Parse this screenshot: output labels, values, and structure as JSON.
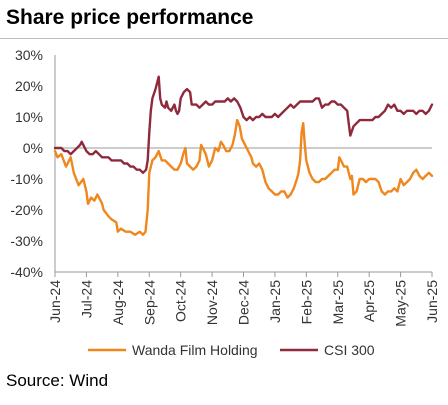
{
  "title": "Share price performance",
  "source": "Source: Wind",
  "chart_data": {
    "type": "line",
    "title": "Share price performance",
    "xlabel": "",
    "ylabel": "",
    "ylim": [
      -40,
      30
    ],
    "yticks": [
      "30%",
      "20%",
      "10%",
      "0%",
      "-10%",
      "-20%",
      "-30%",
      "-40%"
    ],
    "x_tick_labels": [
      "Jun-24",
      "Jul-24",
      "Aug-24",
      "Sep-24",
      "Oct-24",
      "Nov-24",
      "Dec-24",
      "Jan-25",
      "Feb-25",
      "Mar-25",
      "Apr-25",
      "May-25",
      "Jun-25"
    ],
    "legend_position": "bottom",
    "grid": false,
    "series": [
      {
        "name": "Wanda Film Holding",
        "color": "#f0861e",
        "points": [
          [
            0.0,
            -1
          ],
          [
            0.08,
            -3
          ],
          [
            0.2,
            -2
          ],
          [
            0.35,
            -6
          ],
          [
            0.5,
            -3
          ],
          [
            0.6,
            -8
          ],
          [
            0.75,
            -12
          ],
          [
            0.9,
            -10
          ],
          [
            1.0,
            -14
          ],
          [
            1.05,
            -18
          ],
          [
            1.15,
            -16
          ],
          [
            1.25,
            -17
          ],
          [
            1.35,
            -15
          ],
          [
            1.45,
            -17
          ],
          [
            1.5,
            -18
          ],
          [
            1.55,
            -20
          ],
          [
            1.7,
            -22
          ],
          [
            1.8,
            -23
          ],
          [
            1.95,
            -24
          ],
          [
            2.0,
            -27
          ],
          [
            2.1,
            -26
          ],
          [
            2.25,
            -27
          ],
          [
            2.4,
            -27
          ],
          [
            2.55,
            -28
          ],
          [
            2.7,
            -27
          ],
          [
            2.8,
            -28
          ],
          [
            2.88,
            -27
          ],
          [
            2.95,
            -20
          ],
          [
            3.0,
            -8
          ],
          [
            3.1,
            -4
          ],
          [
            3.2,
            -3
          ],
          [
            3.3,
            -1
          ],
          [
            3.4,
            -4
          ],
          [
            3.5,
            -4
          ],
          [
            3.6,
            -5
          ],
          [
            3.7,
            -6
          ],
          [
            3.8,
            -7
          ],
          [
            3.9,
            -7
          ],
          [
            4.0,
            -5
          ],
          [
            4.08,
            -2
          ],
          [
            4.15,
            0
          ],
          [
            4.2,
            -5
          ],
          [
            4.3,
            -6
          ],
          [
            4.4,
            -7
          ],
          [
            4.5,
            -6
          ],
          [
            4.6,
            -4
          ],
          [
            4.65,
            1
          ],
          [
            4.7,
            0
          ],
          [
            4.8,
            -2
          ],
          [
            4.9,
            -6
          ],
          [
            5.0,
            -4
          ],
          [
            5.1,
            0
          ],
          [
            5.2,
            -1
          ],
          [
            5.28,
            2
          ],
          [
            5.35,
            1
          ],
          [
            5.45,
            -1
          ],
          [
            5.55,
            -1
          ],
          [
            5.65,
            1
          ],
          [
            5.72,
            4
          ],
          [
            5.8,
            9
          ],
          [
            5.88,
            7
          ],
          [
            5.95,
            3
          ],
          [
            6.05,
            1
          ],
          [
            6.15,
            -1
          ],
          [
            6.25,
            -3
          ],
          [
            6.3,
            -5
          ],
          [
            6.4,
            -6
          ],
          [
            6.5,
            -5
          ],
          [
            6.6,
            -7
          ],
          [
            6.7,
            -11
          ],
          [
            6.8,
            -13
          ],
          [
            6.9,
            -14
          ],
          [
            7.0,
            -15
          ],
          [
            7.1,
            -15
          ],
          [
            7.2,
            -14
          ],
          [
            7.3,
            -14
          ],
          [
            7.4,
            -16
          ],
          [
            7.5,
            -15
          ],
          [
            7.6,
            -13
          ],
          [
            7.7,
            -10
          ],
          [
            7.75,
            -8
          ],
          [
            7.8,
            -4
          ],
          [
            7.85,
            5
          ],
          [
            7.9,
            8
          ],
          [
            7.95,
            1
          ],
          [
            8.0,
            -4
          ],
          [
            8.1,
            -8
          ],
          [
            8.2,
            -10
          ],
          [
            8.3,
            -11
          ],
          [
            8.4,
            -11
          ],
          [
            8.5,
            -10
          ],
          [
            8.6,
            -10
          ],
          [
            8.7,
            -9
          ],
          [
            8.8,
            -8
          ],
          [
            8.9,
            -7
          ],
          [
            9.0,
            -7
          ],
          [
            9.05,
            -3
          ],
          [
            9.15,
            -5
          ],
          [
            9.2,
            -6
          ],
          [
            9.3,
            -6
          ],
          [
            9.4,
            -10
          ],
          [
            9.45,
            -9
          ],
          [
            9.5,
            -15
          ],
          [
            9.6,
            -14
          ],
          [
            9.7,
            -10
          ],
          [
            9.8,
            -10
          ],
          [
            9.9,
            -11
          ],
          [
            10.0,
            -10
          ],
          [
            10.1,
            -10
          ],
          [
            10.2,
            -10
          ],
          [
            10.3,
            -11
          ],
          [
            10.4,
            -14
          ],
          [
            10.5,
            -15
          ],
          [
            10.6,
            -14
          ],
          [
            10.7,
            -14
          ],
          [
            10.8,
            -13
          ],
          [
            10.9,
            -14
          ],
          [
            11.0,
            -10
          ],
          [
            11.1,
            -12
          ],
          [
            11.2,
            -11
          ],
          [
            11.3,
            -10
          ],
          [
            11.4,
            -8
          ],
          [
            11.5,
            -7
          ],
          [
            11.6,
            -9
          ],
          [
            11.7,
            -10
          ],
          [
            11.8,
            -9
          ],
          [
            11.9,
            -8
          ],
          [
            12.0,
            -9
          ]
        ]
      },
      {
        "name": "CSI 300",
        "color": "#8e2a3c",
        "points": [
          [
            0.0,
            0
          ],
          [
            0.1,
            0
          ],
          [
            0.2,
            0
          ],
          [
            0.3,
            -1
          ],
          [
            0.4,
            -1
          ],
          [
            0.5,
            -2
          ],
          [
            0.6,
            -1
          ],
          [
            0.7,
            0
          ],
          [
            0.8,
            1
          ],
          [
            0.85,
            2
          ],
          [
            0.9,
            1
          ],
          [
            1.0,
            -1
          ],
          [
            1.1,
            -2
          ],
          [
            1.2,
            -2
          ],
          [
            1.3,
            -1
          ],
          [
            1.4,
            -2
          ],
          [
            1.5,
            -3
          ],
          [
            1.6,
            -3
          ],
          [
            1.7,
            -3
          ],
          [
            1.8,
            -4
          ],
          [
            1.9,
            -4
          ],
          [
            2.0,
            -4
          ],
          [
            2.1,
            -4
          ],
          [
            2.2,
            -5
          ],
          [
            2.3,
            -5
          ],
          [
            2.4,
            -6
          ],
          [
            2.5,
            -6
          ],
          [
            2.6,
            -7
          ],
          [
            2.7,
            -7
          ],
          [
            2.8,
            -8
          ],
          [
            2.9,
            -7
          ],
          [
            2.95,
            -4
          ],
          [
            3.0,
            5
          ],
          [
            3.05,
            12
          ],
          [
            3.1,
            16
          ],
          [
            3.2,
            19
          ],
          [
            3.25,
            21
          ],
          [
            3.3,
            23
          ],
          [
            3.35,
            16
          ],
          [
            3.4,
            14
          ],
          [
            3.5,
            13
          ],
          [
            3.55,
            15
          ],
          [
            3.6,
            13
          ],
          [
            3.7,
            12
          ],
          [
            3.8,
            14
          ],
          [
            3.85,
            12
          ],
          [
            3.9,
            11
          ],
          [
            3.95,
            12
          ],
          [
            4.0,
            16
          ],
          [
            4.1,
            18
          ],
          [
            4.2,
            19
          ],
          [
            4.3,
            18
          ],
          [
            4.35,
            14
          ],
          [
            4.5,
            14
          ],
          [
            4.6,
            13
          ],
          [
            4.7,
            14
          ],
          [
            4.8,
            15
          ],
          [
            4.9,
            14
          ],
          [
            5.0,
            14
          ],
          [
            5.1,
            15
          ],
          [
            5.2,
            15
          ],
          [
            5.3,
            15
          ],
          [
            5.4,
            15
          ],
          [
            5.5,
            16
          ],
          [
            5.6,
            15
          ],
          [
            5.7,
            16
          ],
          [
            5.8,
            15
          ],
          [
            5.9,
            13
          ],
          [
            6.0,
            10
          ],
          [
            6.1,
            9
          ],
          [
            6.2,
            10
          ],
          [
            6.3,
            9
          ],
          [
            6.4,
            10
          ],
          [
            6.5,
            10
          ],
          [
            6.6,
            11
          ],
          [
            6.7,
            10
          ],
          [
            6.8,
            10
          ],
          [
            6.9,
            10
          ],
          [
            7.0,
            11
          ],
          [
            7.1,
            10
          ],
          [
            7.2,
            11
          ],
          [
            7.3,
            12
          ],
          [
            7.4,
            13
          ],
          [
            7.5,
            14
          ],
          [
            7.6,
            13
          ],
          [
            7.7,
            14
          ],
          [
            7.8,
            15
          ],
          [
            7.9,
            15
          ],
          [
            8.0,
            15
          ],
          [
            8.1,
            15
          ],
          [
            8.2,
            15
          ],
          [
            8.3,
            16
          ],
          [
            8.4,
            16
          ],
          [
            8.5,
            13
          ],
          [
            8.6,
            14
          ],
          [
            8.7,
            14
          ],
          [
            8.8,
            15
          ],
          [
            8.9,
            15
          ],
          [
            9.0,
            14
          ],
          [
            9.1,
            14
          ],
          [
            9.2,
            13
          ],
          [
            9.3,
            12
          ],
          [
            9.35,
            8
          ],
          [
            9.4,
            4
          ],
          [
            9.5,
            7
          ],
          [
            9.6,
            8
          ],
          [
            9.7,
            9
          ],
          [
            9.8,
            9
          ],
          [
            9.9,
            9
          ],
          [
            10.0,
            9
          ],
          [
            10.1,
            9
          ],
          [
            10.2,
            10
          ],
          [
            10.3,
            10
          ],
          [
            10.4,
            11
          ],
          [
            10.5,
            12
          ],
          [
            10.6,
            14
          ],
          [
            10.7,
            13
          ],
          [
            10.8,
            14
          ],
          [
            10.9,
            12
          ],
          [
            11.0,
            12
          ],
          [
            11.1,
            11
          ],
          [
            11.2,
            12
          ],
          [
            11.3,
            12
          ],
          [
            11.4,
            12
          ],
          [
            11.5,
            11
          ],
          [
            11.6,
            12
          ],
          [
            11.7,
            12
          ],
          [
            11.8,
            11
          ],
          [
            11.9,
            12
          ],
          [
            12.0,
            14
          ]
        ]
      }
    ]
  }
}
